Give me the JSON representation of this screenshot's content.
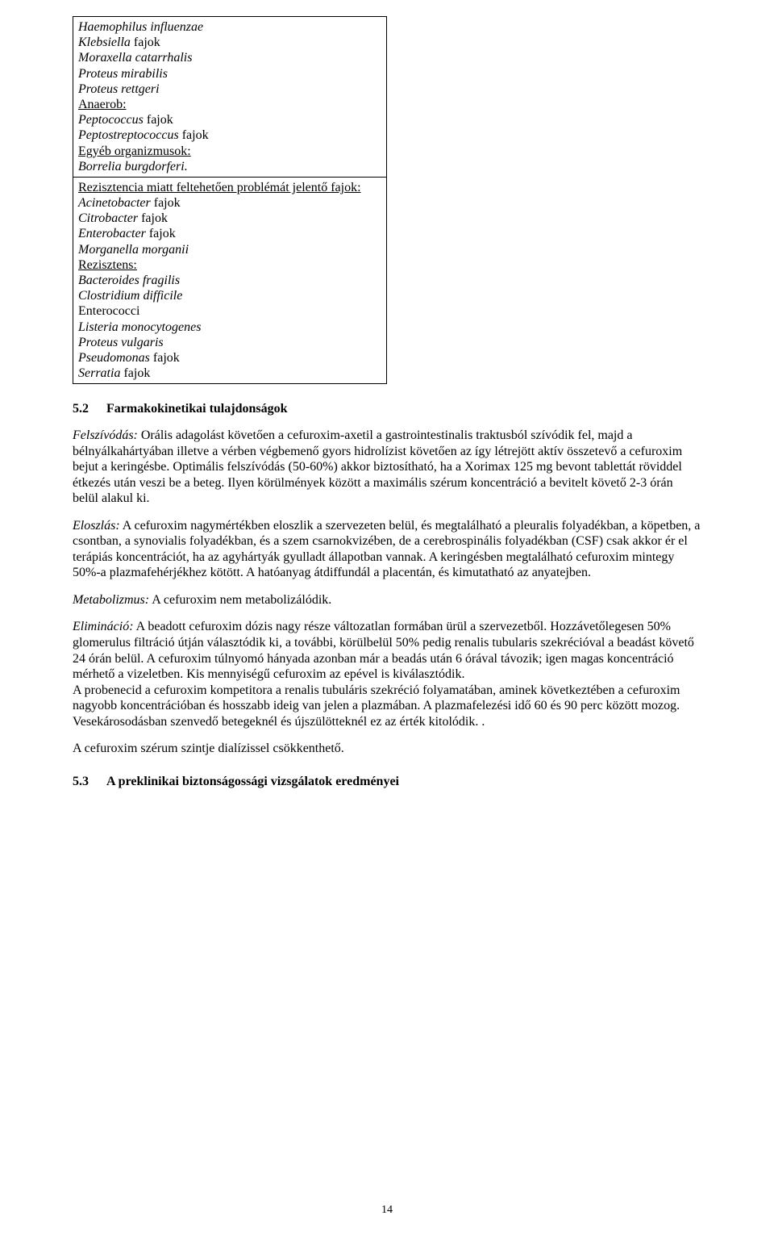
{
  "table": {
    "sections": [
      {
        "lines": [
          {
            "text": "Haemophilus influenzae",
            "italic": true
          },
          {
            "text_parts": [
              {
                "t": "Klebsiella",
                "italic": true
              },
              {
                "t": " fajok"
              }
            ]
          },
          {
            "text": "Moraxella catarrhalis",
            "italic": true
          },
          {
            "text": "Proteus mirabilis",
            "italic": true
          },
          {
            "text": "Proteus rettgeri",
            "italic": true
          },
          {
            "text": "Anaerob:",
            "underline": true
          },
          {
            "text_parts": [
              {
                "t": "Peptococcus",
                "italic": true
              },
              {
                "t": " fajok"
              }
            ]
          },
          {
            "text_parts": [
              {
                "t": "Peptostreptococcus",
                "italic": true
              },
              {
                "t": " fajok"
              }
            ]
          },
          {
            "text": "Egyéb organizmusok:",
            "underline": true
          },
          {
            "text": "Borrelia burgdorferi.",
            "italic": true
          }
        ]
      },
      {
        "lines": [
          {
            "text": "Rezisztencia miatt feltehetően problémát jelentő fajok:",
            "underline": true
          },
          {
            "text_parts": [
              {
                "t": "Acinetobacter",
                "italic": true
              },
              {
                "t": " fajok"
              }
            ]
          },
          {
            "text_parts": [
              {
                "t": "Citrobacter",
                "italic": true
              },
              {
                "t": " fajok"
              }
            ]
          },
          {
            "text_parts": [
              {
                "t": "Enterobacter",
                "italic": true
              },
              {
                "t": " fajok"
              }
            ]
          },
          {
            "text": "Morganella morganii",
            "italic": true
          },
          {
            "text": "Rezisztens:",
            "underline": true
          },
          {
            "text": "Bacteroides fragilis",
            "italic": true
          },
          {
            "text": "Clostridium difficile",
            "italic": true
          },
          {
            "text": "Enterococci"
          },
          {
            "text": "Listeria monocytogenes",
            "italic": true
          },
          {
            "text": "Proteus vulgaris",
            "italic": true
          },
          {
            "text_parts": [
              {
                "t": "Pseudomonas",
                "italic": true
              },
              {
                "t": " fajok"
              }
            ]
          },
          {
            "text_parts": [
              {
                "t": "Serratia",
                "italic": true
              },
              {
                "t": " fajok"
              }
            ]
          }
        ]
      }
    ]
  },
  "section52": {
    "number": "5.2",
    "title": "Farmakokinetikai tulajdonságok"
  },
  "paragraphs": {
    "p1_lead": "Felszívódás:",
    "p1_body": " Orális adagolást követően a cefuroxim-axetil a gastrointestinalis traktusból szívódik fel, majd a bélnyálkahártyában illetve a vérben végbemenő gyors hidrolízist követően az így létrejött aktív összetevő a cefuroxim bejut a keringésbe. Optimális felszívódás (50-60%) akkor biztosítható, ha a Xorimax 125 mg bevont tablettát röviddel étkezés után veszi be a beteg. Ilyen körülmények között a maximális szérum koncentráció a bevitelt követő 2-3 órán belül alakul ki.",
    "p2_lead": "Eloszlás:",
    "p2_body": " A cefuroxim nagymértékben eloszlik a szervezeten belül, és megtalálható a pleuralis folyadékban, a köpetben, a csontban, a synovialis folyadékban, és a szem csarnokvizében, de a cerebrospinális folyadékban (CSF) csak akkor ér el terápiás koncentrációt, ha az agyhártyák gyulladt állapotban vannak. A keringésben megtalálható cefuroxim mintegy 50%-a plazmafehérjékhez kötött. A hatóanyag átdiffundál a placentán, és kimutatható az anyatejben.",
    "p3_lead": "Metabolizmus:",
    "p3_body": " A cefuroxim nem metabolizálódik.",
    "p4_lead": "Elimináció:",
    "p4_body": " A beadott cefuroxim dózis nagy része változatlan formában ürül a szervezetből. Hozzávetőlegesen 50% glomerulus filtráció útján választódik ki, a további, körülbelül 50% pedig renalis tubularis szekrécióval a beadást követő 24 órán belül. A cefuroxim túlnyomó hányada azonban már a beadás után 6 órával távozik; igen magas koncentráció mérhető a vizeletben. Kis mennyiségű cefuroxim az epével is kiválasztódik.",
    "p4b": "A probenecid a cefuroxim kompetitora a renalis tubuláris szekréció folyamatában, aminek következtében a cefuroxim nagyobb koncentrációban és hosszabb ideig van jelen a plazmában. A plazmafelezési idő 60 és 90 perc között mozog. Vesekárosodásban szenvedő betegeknél és újszülötteknél ez az érték kitolódik. .",
    "p5": "A cefuroxim szérum szintje dialízissel csökkenthető."
  },
  "section53": {
    "number": "5.3",
    "title": "A preklinikai biztonságossági vizsgálatok eredményei"
  },
  "pageNumber": "14"
}
